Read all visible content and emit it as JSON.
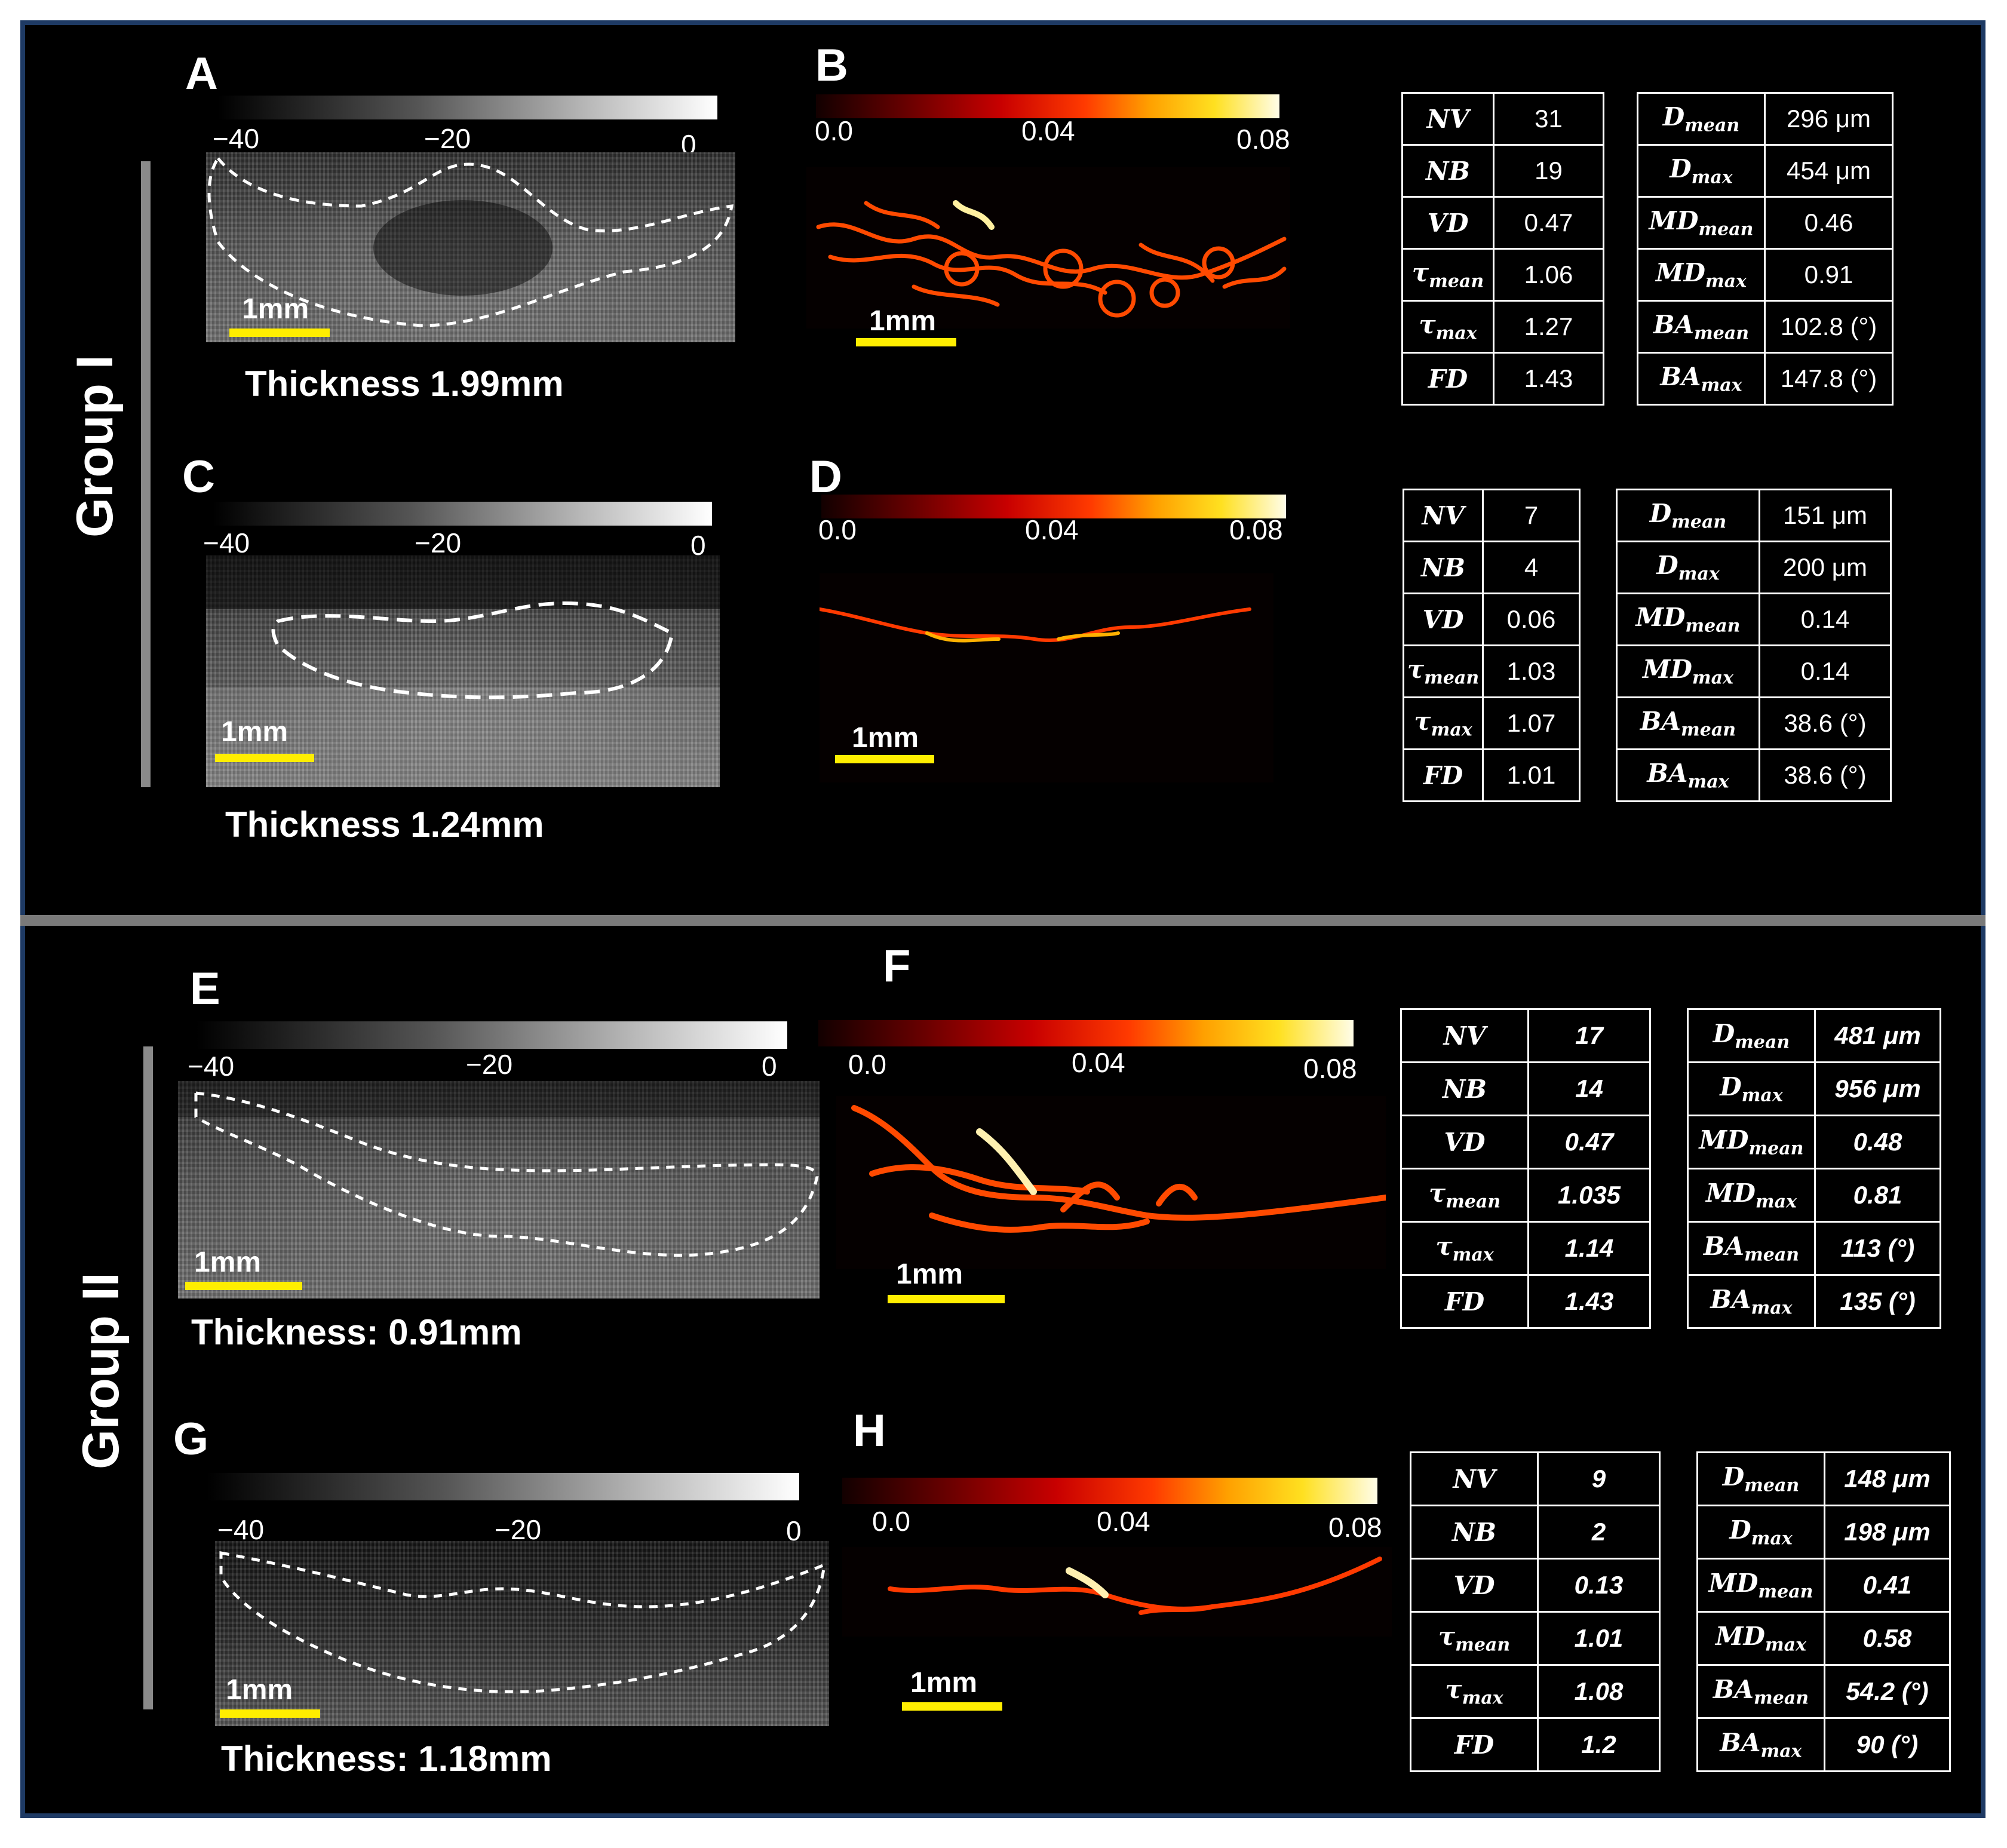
{
  "groups": {
    "g1": "Group I",
    "g2": "Group II"
  },
  "panels": {
    "A": "A",
    "B": "B",
    "C": "C",
    "D": "D",
    "E": "E",
    "F": "F",
    "G": "G",
    "H": "H"
  },
  "ultrasound_colorbar": {
    "ticks": [
      "−40",
      "−20",
      "0"
    ]
  },
  "vascular_colorbar": {
    "ticks": [
      "0.0",
      "0.04",
      "0.08"
    ]
  },
  "scale_label": "1mm",
  "thickness": {
    "A": "Thickness 1.99mm",
    "C": "Thickness 1.24mm",
    "E": "Thickness: 0.91mm",
    "G": "Thickness: 1.18mm"
  },
  "colors": {
    "background": "#000000",
    "frame": "#1e3a64",
    "scalebar": "#ffee00",
    "divider": "#7a7a7a"
  },
  "tables": {
    "B": {
      "left": [
        [
          "NV",
          "31"
        ],
        [
          "NB",
          "19"
        ],
        [
          "VD",
          "0.47"
        ],
        [
          "τmean",
          "1.06"
        ],
        [
          "τmax",
          "1.27"
        ],
        [
          "FD",
          "1.43"
        ]
      ],
      "right": [
        [
          "Dmean",
          "296 μm"
        ],
        [
          "Dmax",
          "454 μm"
        ],
        [
          "MDmean",
          "0.46"
        ],
        [
          "MDmax",
          "0.91"
        ],
        [
          "BAmean",
          "102.8 (°)"
        ],
        [
          "BAmax",
          "147.8 (°)"
        ]
      ]
    },
    "D": {
      "left": [
        [
          "NV",
          "7"
        ],
        [
          "NB",
          "4"
        ],
        [
          "VD",
          "0.06"
        ],
        [
          "τmean",
          "1.03"
        ],
        [
          "τmax",
          "1.07"
        ],
        [
          "FD",
          "1.01"
        ]
      ],
      "right": [
        [
          "Dmean",
          "151 μm"
        ],
        [
          "Dmax",
          "200 μm"
        ],
        [
          "MDmean",
          "0.14"
        ],
        [
          "MDmax",
          "0.14"
        ],
        [
          "BAmean",
          "38.6 (°)"
        ],
        [
          "BAmax",
          "38.6 (°)"
        ]
      ]
    },
    "F": {
      "left": [
        [
          "NV",
          "17"
        ],
        [
          "NB",
          "14"
        ],
        [
          "VD",
          "0.47"
        ],
        [
          "τmean",
          "1.035"
        ],
        [
          "τmax",
          "1.14"
        ],
        [
          "FD",
          "1.43"
        ]
      ],
      "right": [
        [
          "Dmean",
          "481 μm"
        ],
        [
          "Dmax",
          "956 μm"
        ],
        [
          "MDmean",
          "0.48"
        ],
        [
          "MDmax",
          "0.81"
        ],
        [
          "BAmean",
          "113 (°)"
        ],
        [
          "BAmax",
          "135 (°)"
        ]
      ]
    },
    "H": {
      "left": [
        [
          "NV",
          "9"
        ],
        [
          "NB",
          "2"
        ],
        [
          "VD",
          "0.13"
        ],
        [
          "τmean",
          "1.01"
        ],
        [
          "τmax",
          "1.08"
        ],
        [
          "FD",
          "1.2"
        ]
      ],
      "right": [
        [
          "Dmean",
          "148 μm"
        ],
        [
          "Dmax",
          "198 μm"
        ],
        [
          "MDmean",
          "0.41"
        ],
        [
          "MDmax",
          "0.58"
        ],
        [
          "BAmean",
          "54.2 (°)"
        ],
        [
          "BAmax",
          "90 (°)"
        ]
      ]
    }
  }
}
